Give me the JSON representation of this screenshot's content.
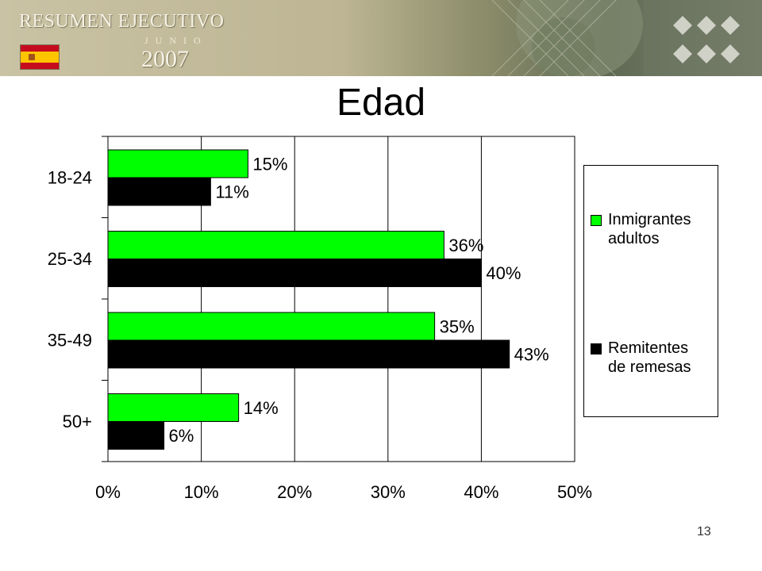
{
  "header": {
    "title": "RESUMEN EJECUTIVO",
    "month": "JUNIO",
    "year": "2007",
    "flag_colors": [
      "#c60b1e",
      "#ffc400"
    ]
  },
  "slide": {
    "title": "Edad",
    "page_number": "13"
  },
  "chart_data": {
    "type": "bar",
    "orientation": "horizontal",
    "categories": [
      "18-24",
      "25-34",
      "35-49",
      "50+"
    ],
    "series": [
      {
        "name": "Inmigrantes adultos",
        "color": "#00ff00",
        "values": [
          15,
          36,
          35,
          14
        ],
        "labels": [
          "15%",
          "36%",
          "35%",
          "14%"
        ]
      },
      {
        "name": "Remitentes de remesas",
        "color": "#000000",
        "values": [
          11,
          40,
          43,
          6
        ],
        "labels": [
          "11%",
          "40%",
          "43%",
          "6%"
        ]
      }
    ],
    "x_ticks": [
      "0%",
      "10%",
      "20%",
      "30%",
      "40%",
      "50%"
    ],
    "xlim": [
      0,
      50
    ],
    "grid": "vertical",
    "legend_position": "right"
  },
  "legend": {
    "items": [
      {
        "line1": "Inmigrantes",
        "line2": "adultos"
      },
      {
        "line1": "Remitentes",
        "line2": "de remesas"
      }
    ]
  }
}
